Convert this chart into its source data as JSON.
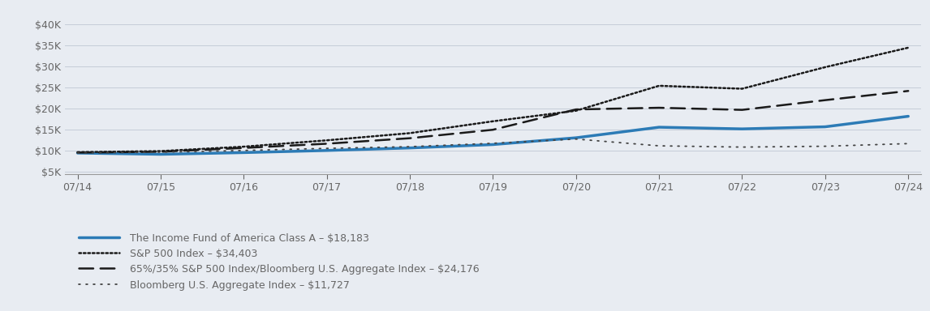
{
  "background_color": "#e8ecf2",
  "plot_bg_color": "#e8ecf2",
  "x_labels": [
    "07/14",
    "07/15",
    "07/16",
    "07/17",
    "07/18",
    "07/19",
    "07/20",
    "07/21",
    "07/22",
    "07/23",
    "07/24"
  ],
  "x_values": [
    0,
    1,
    2,
    3,
    4,
    5,
    6,
    7,
    8,
    9,
    10
  ],
  "yticks": [
    5000,
    10000,
    15000,
    20000,
    25000,
    30000,
    35000,
    40000
  ],
  "ylim": [
    4500,
    42000
  ],
  "xlim": [
    -0.15,
    10.15
  ],
  "series": [
    {
      "name": "The Income Fund of America Class A – $18,183",
      "color": "#2c7bb6",
      "linewidth": 2.5,
      "linestyle": "solid",
      "values": [
        9500,
        9200,
        9600,
        10100,
        10700,
        11500,
        13100,
        15600,
        15200,
        15700,
        18183
      ]
    },
    {
      "name": "S&P 500 Index – $34,403",
      "color": "#1a1a1a",
      "linewidth": 1.8,
      "linestyle": "densely_dotted",
      "values": [
        9700,
        9950,
        11000,
        12500,
        14200,
        17000,
        19500,
        25400,
        24700,
        29800,
        34403
      ]
    },
    {
      "name": "65%/35% S&P 500 Index/Bloomberg U.S. Aggregate Index – $24,176",
      "color": "#1a1a1a",
      "linewidth": 1.8,
      "linestyle": "dashed",
      "values": [
        9600,
        9800,
        10700,
        11700,
        13000,
        15000,
        19800,
        20200,
        19700,
        22000,
        24176
      ]
    },
    {
      "name": "Bloomberg U.S. Aggregate Index – $11,727",
      "color": "#444444",
      "linewidth": 1.3,
      "linestyle": "loosely_dotted",
      "values": [
        9500,
        9700,
        10100,
        10600,
        11000,
        11800,
        12800,
        11200,
        10900,
        11100,
        11727
      ]
    }
  ],
  "legend_fontsize": 9,
  "tick_fontsize": 9,
  "tick_color": "#666666",
  "grid_color": "#c5cdd8",
  "spine_color": "#999999",
  "ylabel_color": "#666666"
}
